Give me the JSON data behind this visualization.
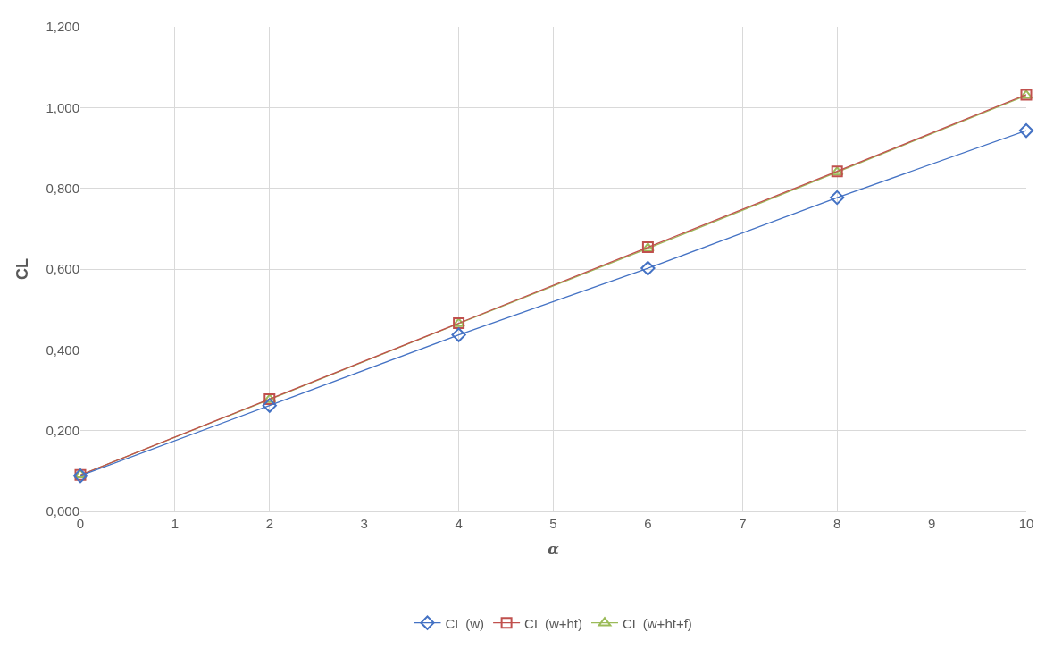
{
  "chart_data": {
    "type": "line",
    "xlabel": "α",
    "ylabel": "CL",
    "x": [
      0,
      2,
      4,
      6,
      8,
      10
    ],
    "series": [
      {
        "name": "CL (w)",
        "color": "#4472c4",
        "marker": "diamond",
        "values": [
          0.088,
          0.262,
          0.437,
          0.602,
          0.777,
          0.943
        ]
      },
      {
        "name": "CL (w+ht)",
        "color": "#c0504d",
        "marker": "square",
        "values": [
          0.09,
          0.278,
          0.466,
          0.654,
          0.842,
          1.032
        ]
      },
      {
        "name": "CL (w+ht+f)",
        "color": "#9bbb59",
        "marker": "triangle",
        "values": [
          0.09,
          0.277,
          0.465,
          0.651,
          0.84,
          1.03
        ]
      }
    ],
    "xlim": [
      0,
      10
    ],
    "xticks": [
      0,
      1,
      2,
      3,
      4,
      5,
      6,
      7,
      8,
      9,
      10
    ],
    "ylim": [
      0,
      1.2
    ],
    "yticks": [
      {
        "value": 0,
        "label": "0,000"
      },
      {
        "value": 0.2,
        "label": "0,200"
      },
      {
        "value": 0.4,
        "label": "0,400"
      },
      {
        "value": 0.6,
        "label": "0,600"
      },
      {
        "value": 0.8,
        "label": "0,800"
      },
      {
        "value": 1.0,
        "label": "1,000"
      },
      {
        "value": 1.2,
        "label": "1,200"
      }
    ],
    "grid": true,
    "legend": "bottom",
    "line_style": "solid"
  }
}
